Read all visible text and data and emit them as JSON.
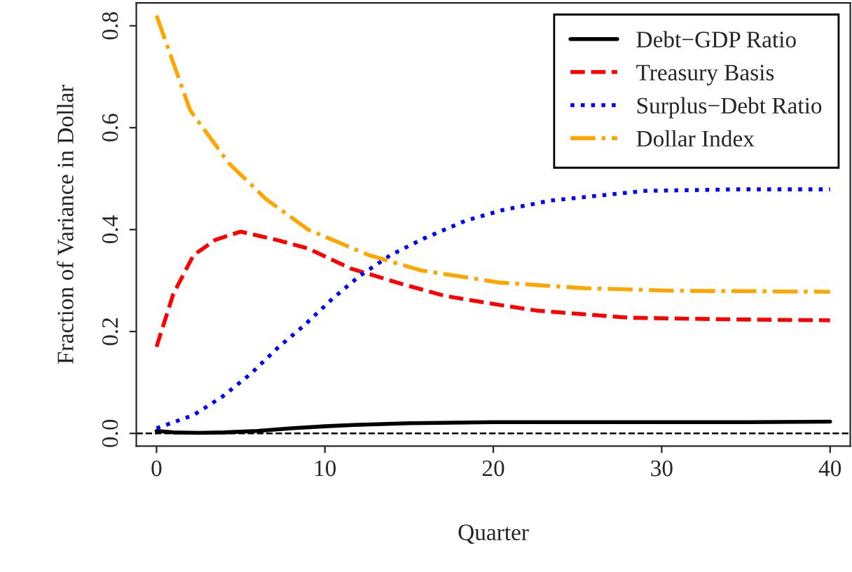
{
  "chart_data": {
    "type": "line",
    "xlabel": "Quarter",
    "ylabel": "Fraction of Variance in Dollar",
    "xlim": [
      -1.2,
      41.2
    ],
    "ylim": [
      -0.025,
      0.845
    ],
    "xticks": [
      0,
      10,
      20,
      30,
      40
    ],
    "yticks": [
      {
        "value": 0,
        "label": "0.0"
      },
      0.2,
      0.4,
      0.6,
      0.8
    ],
    "grid": false,
    "legend": "top right",
    "ref_lines": [
      {
        "axis": "y",
        "value": 0,
        "color": "#000000",
        "line_style": "dashed"
      }
    ],
    "series": [
      {
        "name": "Debt−GDP Ratio",
        "color": "#000000",
        "line_style": "solid",
        "x": [
          0,
          1,
          2.5,
          4,
          6,
          8,
          10,
          12,
          15,
          20,
          25,
          30,
          35,
          40
        ],
        "values": [
          0.005,
          0.002,
          0.001,
          0.002,
          0.005,
          0.01,
          0.014,
          0.017,
          0.02,
          0.022,
          0.022,
          0.022,
          0.022,
          0.023
        ]
      },
      {
        "name": "Treasury Basis",
        "color": "#ff0000",
        "line_style": "dashed",
        "x": [
          0,
          1,
          2.2,
          3.5,
          5,
          7.1,
          9,
          11.5,
          14.6,
          17.1,
          20.4,
          22.6,
          28.1,
          33.7,
          40
        ],
        "values": [
          0.17,
          0.274,
          0.35,
          0.38,
          0.396,
          0.38,
          0.363,
          0.324,
          0.293,
          0.27,
          0.252,
          0.241,
          0.227,
          0.224,
          0.222
        ]
      },
      {
        "name": "Surplus−Debt Ratio",
        "color": "#0000ff",
        "line_style": "dotted",
        "x": [
          0,
          2.2,
          3.9,
          5.6,
          7.2,
          8.8,
          10.5,
          12.1,
          13.9,
          15.9,
          18.4,
          20.5,
          23.4,
          29,
          34.5,
          40
        ],
        "values": [
          0.01,
          0.036,
          0.072,
          0.117,
          0.168,
          0.213,
          0.266,
          0.31,
          0.35,
          0.383,
          0.418,
          0.438,
          0.457,
          0.476,
          0.479,
          0.479
        ]
      },
      {
        "name": "Dollar Index",
        "color": "#ffa500",
        "line_style": "dashdot",
        "x": [
          0,
          2,
          4.3,
          6.5,
          9,
          12.6,
          15.7,
          20.4,
          25.4,
          30.9,
          40
        ],
        "values": [
          0.82,
          0.634,
          0.53,
          0.46,
          0.4,
          0.35,
          0.32,
          0.296,
          0.285,
          0.28,
          0.278
        ]
      }
    ]
  }
}
